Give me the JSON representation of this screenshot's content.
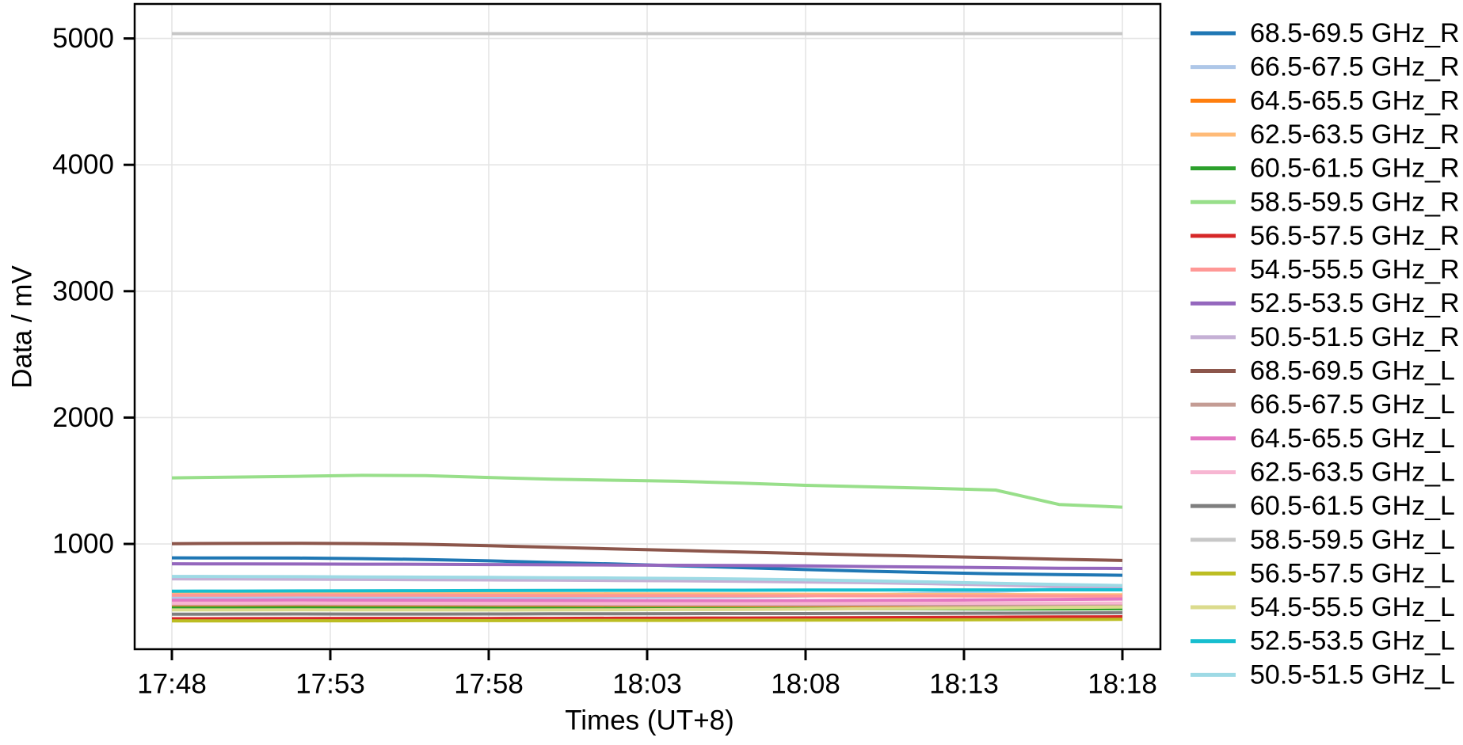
{
  "chart_data": {
    "type": "line",
    "title": "",
    "xlabel": "Times (UT+8)",
    "ylabel": "Data / mV",
    "grid": true,
    "legend_position": "right-outside",
    "background_color": "#ffffff",
    "grid_color": "#e5e5e5",
    "spine_color": "#000000",
    "x_tick_labels": [
      "17:48",
      "17:53",
      "17:58",
      "18:03",
      "18:08",
      "18:13",
      "18:18"
    ],
    "x_tick_minutes": [
      0,
      5,
      10,
      15,
      20,
      25,
      30
    ],
    "y_ticks": [
      1000,
      2000,
      3000,
      4000,
      5000
    ],
    "ylim": [
      167,
      5273
    ],
    "xlim_minutes": [
      -1.175,
      31.2
    ],
    "x_minutes": [
      0,
      2,
      4,
      6,
      8,
      10,
      12,
      14,
      16,
      18,
      20,
      22,
      24,
      26,
      28,
      30
    ],
    "series": [
      {
        "name": "68.5-69.5 GHz_R",
        "color": "#1f77b4",
        "values": [
          890,
          889,
          888,
          884,
          877,
          866,
          853,
          841,
          827,
          812,
          797,
          784,
          773,
          764,
          757,
          752
        ]
      },
      {
        "name": "66.5-67.5 GHz_R",
        "color": "#aec7e8",
        "values": [
          571,
          572,
          573,
          572,
          571,
          574,
          577,
          579,
          581,
          583,
          588,
          597,
          610,
          625,
          641,
          653
        ]
      },
      {
        "name": "64.5-65.5 GHz_R",
        "color": "#ff7f0e",
        "values": [
          506,
          506,
          507,
          506,
          505,
          505,
          506,
          505,
          505,
          506,
          507,
          507,
          506,
          507,
          508,
          509
        ]
      },
      {
        "name": "62.5-63.5 GHz_R",
        "color": "#ffbb78",
        "values": [
          609,
          609,
          610,
          609,
          608,
          607,
          606,
          605,
          604,
          603,
          602,
          601,
          600,
          599,
          598,
          598
        ]
      },
      {
        "name": "60.5-61.5 GHz_R",
        "color": "#2ca02c",
        "values": [
          493,
          493,
          494,
          493,
          492,
          491,
          490,
          489,
          489,
          488,
          488,
          487,
          487,
          486,
          486,
          487
        ]
      },
      {
        "name": "58.5-59.5 GHz_R",
        "color": "#98df8a",
        "values": [
          1523,
          1529,
          1535,
          1543,
          1540,
          1526,
          1513,
          1504,
          1496,
          1481,
          1464,
          1452,
          1440,
          1426,
          1312,
          1291
        ]
      },
      {
        "name": "56.5-57.5 GHz_R",
        "color": "#d62728",
        "values": [
          408,
          409,
          410,
          411,
          411,
          410,
          411,
          412,
          413,
          414,
          415,
          417,
          418,
          420,
          422,
          424
        ]
      },
      {
        "name": "54.5-55.5 GHz_R",
        "color": "#ff9896",
        "values": [
          595,
          595,
          596,
          595,
          594,
          593,
          592,
          592,
          591,
          590,
          590,
          589,
          589,
          588,
          588,
          587
        ]
      },
      {
        "name": "52.5-53.5 GHz_R",
        "color": "#9467bd",
        "values": [
          843,
          842,
          841,
          840,
          839,
          837,
          835,
          833,
          831,
          829,
          826,
          821,
          817,
          812,
          808,
          806
        ]
      },
      {
        "name": "50.5-51.5 GHz_R",
        "color": "#c5b0d5",
        "values": [
          724,
          723,
          721,
          719,
          717,
          715,
          713,
          711,
          708,
          704,
          699,
          693,
          685,
          675,
          663,
          653
        ]
      },
      {
        "name": "68.5-69.5 GHz_L",
        "color": "#8c564b",
        "values": [
          1002,
          1004,
          1005,
          1003,
          997,
          986,
          973,
          960,
          948,
          936,
          924,
          912,
          902,
          891,
          879,
          869
        ]
      },
      {
        "name": "66.5-67.5 GHz_L",
        "color": "#c49c94",
        "values": [
          523,
          523,
          524,
          523,
          522,
          521,
          521,
          520,
          519,
          519,
          518,
          518,
          517,
          517,
          518,
          519
        ]
      },
      {
        "name": "64.5-65.5 GHz_L",
        "color": "#e377c2",
        "values": [
          554,
          555,
          556,
          555,
          554,
          553,
          552,
          551,
          551,
          550,
          551,
          553,
          555,
          558,
          561,
          564
        ]
      },
      {
        "name": "62.5-63.5 GHz_L",
        "color": "#f7b6d2",
        "values": [
          531,
          531,
          532,
          531,
          530,
          529,
          529,
          528,
          527,
          527,
          528,
          529,
          530,
          531,
          532,
          533
        ]
      },
      {
        "name": "60.5-61.5 GHz_L",
        "color": "#7f7f7f",
        "values": [
          444,
          445,
          446,
          445,
          445,
          446,
          447,
          447,
          448,
          449,
          449,
          450,
          451,
          452,
          454,
          456
        ]
      },
      {
        "name": "58.5-59.5 GHz_L",
        "color": "#c7c7c7",
        "values": [
          5038,
          5038,
          5038,
          5038,
          5038,
          5038,
          5038,
          5038,
          5038,
          5038,
          5038,
          5038,
          5038,
          5038,
          5038,
          5038
        ]
      },
      {
        "name": "56.5-57.5 GHz_L",
        "color": "#bcbd22",
        "values": [
          391,
          391,
          392,
          392,
          393,
          393,
          394,
          395,
          395,
          396,
          397,
          398,
          399,
          400,
          402,
          403
        ]
      },
      {
        "name": "54.5-55.5 GHz_L",
        "color": "#dbdb8d",
        "values": [
          478,
          478,
          479,
          478,
          478,
          477,
          478,
          479,
          481,
          482,
          484,
          487,
          490,
          493,
          497,
          501
        ]
      },
      {
        "name": "52.5-53.5 GHz_L",
        "color": "#17becf",
        "values": [
          626,
          627,
          628,
          629,
          630,
          631,
          632,
          633,
          634,
          634,
          635,
          635,
          636,
          636,
          637,
          637
        ]
      },
      {
        "name": "50.5-51.5 GHz_L",
        "color": "#9edae5",
        "values": [
          743,
          742,
          741,
          739,
          737,
          735,
          733,
          730,
          727,
          722,
          716,
          708,
          699,
          689,
          679,
          671
        ]
      }
    ]
  }
}
